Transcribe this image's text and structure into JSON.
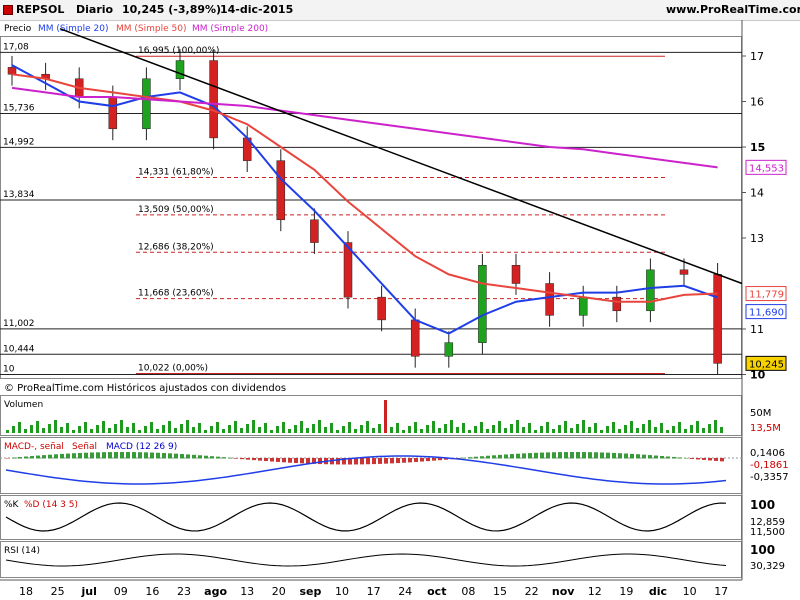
{
  "header": {
    "symbol": "REPSOL",
    "period": "Diario",
    "last_info": "10,245 (-3,89%)",
    "date": "14-dic-2015",
    "website": "www.ProRealTime.com"
  },
  "price_panel": {
    "legend": {
      "price": "Precio",
      "mm20": "MM (Simple 20)",
      "mm50": "MM (Simple 50)",
      "mm200": "MM (Simple 200)"
    },
    "copyright": "© ProRealTime.com  Históricos ajustados con dividendos",
    "level_labels": [
      "17,08",
      "15,736",
      "14,992",
      "13,834",
      "11,002",
      "10,444",
      "10"
    ],
    "fib_labels": [
      "16,995 (100,00%)",
      "14,331 (61,80%)",
      "13,509 (50,00%)",
      "12,686 (38,20%)",
      "11,668 (23,60%)",
      "10,022 (0,00%)"
    ],
    "axis_ticks": [
      "17",
      "16",
      "15",
      "14",
      "13",
      "11",
      "10"
    ],
    "tags": {
      "mm200": "14,553",
      "mm50": "11,779",
      "mm20": "11,690",
      "last": "10,245"
    }
  },
  "volume_panel": {
    "title": "Volumen",
    "tick": "50M",
    "tag": "13,5M"
  },
  "macd_panel": {
    "title_a": "MACD-, señal",
    "title_b": "Señal",
    "title_c": "MACD (12 26 9)",
    "tags": [
      "0,1406",
      "-0,1861",
      "-0,3357"
    ]
  },
  "stoch_panel": {
    "title_a": "%K",
    "title_b": "%D (14 3 5)",
    "tick": "100",
    "tags": [
      "12,859",
      "11,500"
    ]
  },
  "rsi_panel": {
    "title": "RSI (14)",
    "tick": "100",
    "tag": "30,329"
  },
  "time_axis": [
    "18",
    "25",
    "jul",
    "09",
    "16",
    "23",
    "ago",
    "13",
    "20",
    "sep",
    "10",
    "17",
    "24",
    "oct",
    "08",
    "15",
    "22",
    "nov",
    "12",
    "19",
    "dic",
    "10",
    "17"
  ],
  "colors": {
    "up": "#1ea31e",
    "down": "#d42222",
    "mm20": "#1f3ee8",
    "mm50": "#e8453c",
    "mm200": "#cc22cc",
    "trendline": "#000000",
    "fib": "#cc2222",
    "volume": "#1e9a1e"
  },
  "chart_data": {
    "type": "candlestick",
    "title": "REPSOL Diario",
    "x": [
      "jun 18",
      "jun 25",
      "jul",
      "jul 09",
      "jul 16",
      "jul 23",
      "ago",
      "ago 13",
      "ago 20",
      "sep",
      "sep 10",
      "sep 17",
      "sep 24",
      "oct",
      "oct 08",
      "oct 15",
      "oct 22",
      "nov",
      "nov 12",
      "nov 19",
      "dic",
      "dic 10"
    ],
    "close": [
      16.6,
      16.5,
      16.1,
      15.4,
      16.5,
      16.9,
      15.2,
      14.7,
      13.4,
      12.9,
      11.7,
      11.2,
      10.4,
      10.7,
      12.4,
      12.0,
      11.3,
      11.7,
      11.4,
      12.3,
      12.2,
      10.245
    ],
    "series": [
      {
        "name": "MM (Simple 20)",
        "values": [
          16.8,
          16.4,
          16.0,
          15.9,
          16.1,
          16.2,
          15.9,
          15.2,
          14.3,
          13.6,
          12.8,
          12.0,
          11.2,
          10.9,
          11.3,
          11.6,
          11.7,
          11.8,
          11.8,
          11.9,
          11.95,
          11.69
        ]
      },
      {
        "name": "MM (Simple 50)",
        "values": [
          16.6,
          16.5,
          16.3,
          16.2,
          16.1,
          16.0,
          15.8,
          15.5,
          15.0,
          14.5,
          13.8,
          13.2,
          12.6,
          12.2,
          12.0,
          11.9,
          11.8,
          11.7,
          11.6,
          11.6,
          11.75,
          11.779
        ]
      },
      {
        "name": "MM (Simple 200)",
        "values": [
          16.3,
          16.2,
          16.1,
          16.1,
          16.05,
          16.0,
          15.95,
          15.9,
          15.8,
          15.7,
          15.6,
          15.5,
          15.4,
          15.3,
          15.2,
          15.1,
          15.0,
          14.95,
          14.85,
          14.75,
          14.65,
          14.553
        ]
      }
    ],
    "fibonacci": [
      {
        "value": 16.995,
        "label": "16,995 (100,00%)"
      },
      {
        "value": 14.331,
        "label": "14,331 (61,80%)"
      },
      {
        "value": 13.509,
        "label": "13,509 (50,00%)"
      },
      {
        "value": 12.686,
        "label": "12,686 (38,20%)"
      },
      {
        "value": 11.668,
        "label": "11,668 (23,60%)"
      },
      {
        "value": 10.022,
        "label": "10,022 (0,00%)"
      }
    ],
    "horizontal_levels": [
      17.08,
      15.736,
      14.992,
      13.834,
      11.002,
      10.444,
      10.0
    ],
    "ylim": [
      9.9,
      17.5
    ],
    "grid": false,
    "legend": "top-left"
  }
}
